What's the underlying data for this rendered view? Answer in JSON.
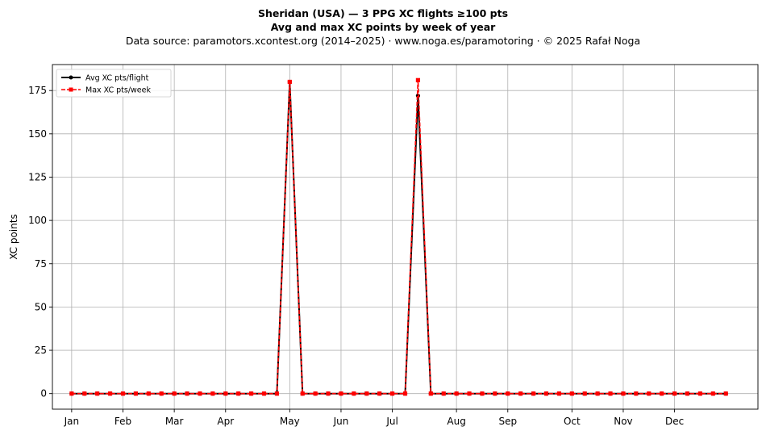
{
  "title_line1": "Sheridan (USA)  —  3 PPG XC flights ≥100 pts",
  "title_line2": "Avg and max XC points by week of year",
  "subtitle": "Data source: paramotors.xcontest.org (2014–2025)  ·  www.noga.es/paramotoring  ·  © 2025 Rafał Noga",
  "chart_data": {
    "type": "line",
    "title": "Sheridan (USA)  —  3 PPG XC flights ≥100 pts",
    "subtitle": "Avg and max XC points by week of year",
    "xlabel": "",
    "ylabel": "XC points",
    "x_unit": "week of year",
    "x": [
      1,
      2,
      3,
      4,
      5,
      6,
      7,
      8,
      9,
      10,
      11,
      12,
      13,
      14,
      15,
      16,
      17,
      18,
      19,
      20,
      21,
      22,
      23,
      24,
      25,
      26,
      27,
      28,
      29,
      30,
      31,
      32,
      33,
      34,
      35,
      36,
      37,
      38,
      39,
      40,
      41,
      42,
      43,
      44,
      45,
      46,
      47,
      48,
      49,
      50,
      51,
      52
    ],
    "x_ticks": [
      {
        "label": "Jan",
        "week": 1
      },
      {
        "label": "Feb",
        "week": 5
      },
      {
        "label": "Mar",
        "week": 9
      },
      {
        "label": "Apr",
        "week": 13
      },
      {
        "label": "May",
        "week": 18
      },
      {
        "label": "Jun",
        "week": 22
      },
      {
        "label": "Jul",
        "week": 26
      },
      {
        "label": "Aug",
        "week": 31
      },
      {
        "label": "Sep",
        "week": 35
      },
      {
        "label": "Oct",
        "week": 40
      },
      {
        "label": "Nov",
        "week": 44
      },
      {
        "label": "Dec",
        "week": 48
      }
    ],
    "y_ticks": [
      0,
      25,
      50,
      75,
      100,
      125,
      150,
      175
    ],
    "xlim": [
      -0.5,
      54.5
    ],
    "ylim": [
      -9,
      190
    ],
    "grid": true,
    "legend_position": "top-left",
    "series": [
      {
        "name": "Avg XC pts/flight",
        "color": "#000000",
        "style": "solid",
        "marker": "circle",
        "values": [
          0,
          0,
          0,
          0,
          0,
          0,
          0,
          0,
          0,
          0,
          0,
          0,
          0,
          0,
          0,
          0,
          0,
          180,
          0,
          0,
          0,
          0,
          0,
          0,
          0,
          0,
          0,
          172,
          0,
          0,
          0,
          0,
          0,
          0,
          0,
          0,
          0,
          0,
          0,
          0,
          0,
          0,
          0,
          0,
          0,
          0,
          0,
          0,
          0,
          0,
          0,
          0
        ]
      },
      {
        "name": "Max XC pts/week",
        "color": "#ff0000",
        "style": "dashed",
        "marker": "square",
        "values": [
          0,
          0,
          0,
          0,
          0,
          0,
          0,
          0,
          0,
          0,
          0,
          0,
          0,
          0,
          0,
          0,
          0,
          180,
          0,
          0,
          0,
          0,
          0,
          0,
          0,
          0,
          0,
          181,
          0,
          0,
          0,
          0,
          0,
          0,
          0,
          0,
          0,
          0,
          0,
          0,
          0,
          0,
          0,
          0,
          0,
          0,
          0,
          0,
          0,
          0,
          0,
          0
        ]
      }
    ]
  }
}
